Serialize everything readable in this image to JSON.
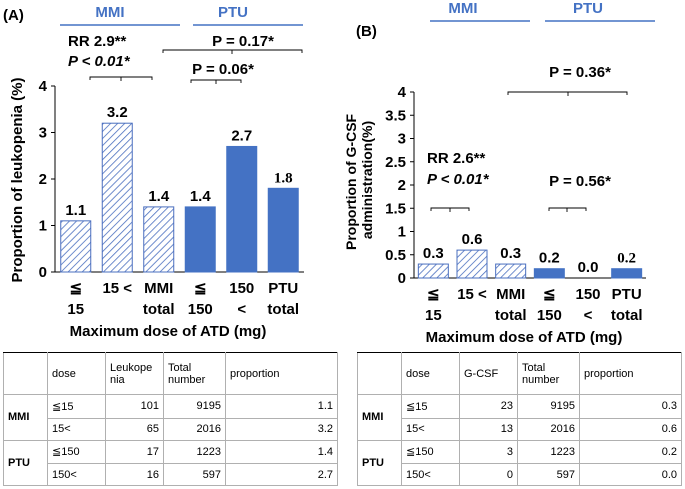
{
  "colors": {
    "mmi_stroke": "#4a6fbf",
    "ptu_fill": "#4472c4",
    "group_line": "#4472c4",
    "group_text": "#4472c4"
  },
  "chart_data": [
    {
      "type": "bar",
      "panel_label": "(A)",
      "group_labels": [
        "MMI",
        "PTU"
      ],
      "categories": [
        "≦ 15",
        "15 <",
        "MMI total",
        "≦ 150",
        "150 <",
        "PTU total"
      ],
      "tick_labels": [
        [
          "≦",
          "15"
        ],
        [
          "15 <",
          ""
        ],
        [
          "MMI",
          "total"
        ],
        [
          "≦",
          "150"
        ],
        [
          "150",
          "<"
        ],
        [
          "PTU",
          "total"
        ]
      ],
      "values": [
        1.1,
        3.2,
        1.4,
        1.4,
        2.7,
        1.8
      ],
      "value_labels": [
        "1.1",
        "3.2",
        "1.4",
        "1.4",
        "2.7",
        "1.8"
      ],
      "bar_styles": [
        "hatch",
        "hatch",
        "hatch",
        "solid",
        "solid",
        "solid"
      ],
      "ylabel": "Proportion of leukopenia (%)",
      "xlabel": "Maximum dose of ATD (mg)",
      "ylim": [
        0,
        4
      ],
      "yticks": [
        "0",
        "1",
        "2",
        "3",
        "4"
      ],
      "annotations": [
        {
          "text": "RR 2.9**"
        },
        {
          "text": "P < 0.01*"
        },
        {
          "text": "P = 0.17*"
        },
        {
          "text": "P = 0.06*"
        }
      ]
    },
    {
      "type": "bar",
      "panel_label": "(B)",
      "group_labels": [
        "MMI",
        "PTU"
      ],
      "categories": [
        "≦ 15",
        "15 <",
        "MMI total",
        "≦ 150",
        "150 <",
        "PTU total"
      ],
      "tick_labels": [
        [
          "≦",
          "15"
        ],
        [
          "15 <",
          ""
        ],
        [
          "MMI",
          "total"
        ],
        [
          "≦",
          "150"
        ],
        [
          "150",
          "<"
        ],
        [
          "PTU",
          "total"
        ]
      ],
      "values": [
        0.3,
        0.6,
        0.3,
        0.2,
        0.0,
        0.2
      ],
      "value_labels": [
        "0.3",
        "0.6",
        "0.3",
        "0.2",
        "0.0",
        "0.2"
      ],
      "bar_styles": [
        "hatch",
        "hatch",
        "hatch",
        "solid",
        "solid",
        "solid"
      ],
      "ylabel": "Proportion of G-CSF administration(%)",
      "xlabel": "Maximum dose of ATD (mg)",
      "ylim": [
        0,
        4
      ],
      "yticks": [
        "0",
        "0.5",
        "1",
        "1.5",
        "2",
        "2.5",
        "3",
        "3.5",
        "4"
      ],
      "annotations": [
        {
          "text": "P = 0.36*"
        },
        {
          "text": "RR 2.6**"
        },
        {
          "text": "P < 0.01*"
        },
        {
          "text": "P = 0.56*"
        }
      ]
    }
  ],
  "tables": [
    {
      "headers": [
        "",
        "dose",
        "Leukope nia",
        "Total number",
        "proportion"
      ],
      "header_lines": [
        [
          "dose"
        ],
        [
          "Leukope",
          "nia"
        ],
        [
          "Total",
          "number"
        ],
        [
          "proportion"
        ]
      ],
      "groups": [
        {
          "name": "MMI",
          "rows": [
            [
              "≦15",
              "101",
              "9195",
              "1.1"
            ],
            [
              "15<",
              "65",
              "2016",
              "3.2"
            ]
          ]
        },
        {
          "name": "PTU",
          "rows": [
            [
              "≦150",
              "17",
              "1223",
              "1.4"
            ],
            [
              "150<",
              "16",
              "597",
              "2.7"
            ]
          ]
        }
      ]
    },
    {
      "headers": [
        "",
        "dose",
        "G-CSF",
        "Total number",
        "proportion"
      ],
      "header_lines": [
        [
          "dose"
        ],
        [
          "G-CSF"
        ],
        [
          "Total",
          "number"
        ],
        [
          "proportion"
        ]
      ],
      "groups": [
        {
          "name": "MMI",
          "rows": [
            [
              "≦15",
              "23",
              "9195",
              "0.3"
            ],
            [
              "15<",
              "13",
              "2016",
              "0.6"
            ]
          ]
        },
        {
          "name": "PTU",
          "rows": [
            [
              "≦150",
              "3",
              "1223",
              "0.2"
            ],
            [
              "150<",
              "0",
              "597",
              "0.0"
            ]
          ]
        }
      ]
    }
  ]
}
